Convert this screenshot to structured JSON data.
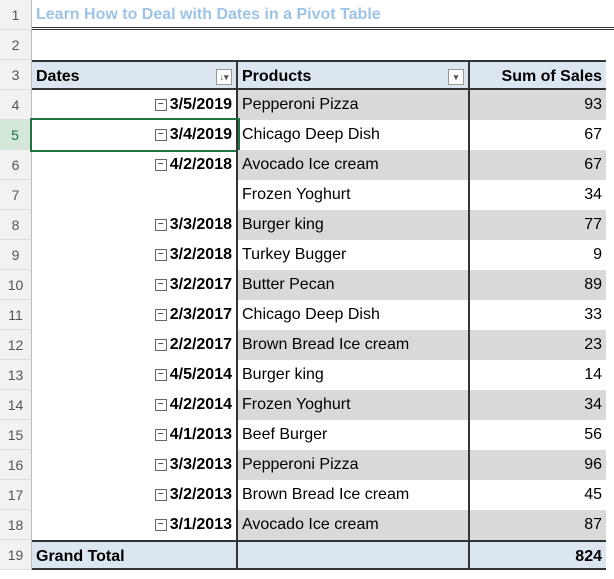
{
  "sheet": {
    "title": "Learn How to Deal with Dates in a Pivot Table",
    "row_headers": [
      1,
      2,
      3,
      4,
      5,
      6,
      7,
      8,
      9,
      10,
      11,
      12,
      13,
      14,
      15,
      16,
      17,
      18,
      19
    ],
    "columns": [
      "Dates",
      "Products",
      "Sum of Sales"
    ],
    "rows": [
      {
        "date": "3/5/2019",
        "product": "Pepperoni Pizza",
        "sales": 93
      },
      {
        "date": "3/4/2019",
        "product": "Chicago Deep Dish",
        "sales": 67
      },
      {
        "date": "4/2/2018",
        "product": "Avocado Ice cream",
        "sales": 67
      },
      {
        "date": null,
        "product": "Frozen Yoghurt",
        "sales": 34
      },
      {
        "date": "3/3/2018",
        "product": "Burger king",
        "sales": 77
      },
      {
        "date": "3/2/2018",
        "product": "Turkey Bugger",
        "sales": 9
      },
      {
        "date": "3/2/2017",
        "product": "Butter Pecan",
        "sales": 89
      },
      {
        "date": "2/3/2017",
        "product": "Chicago Deep Dish",
        "sales": 33
      },
      {
        "date": "2/2/2017",
        "product": "Brown Bread Ice cream",
        "sales": 23
      },
      {
        "date": "4/5/2014",
        "product": "Burger king",
        "sales": 14
      },
      {
        "date": "4/2/2014",
        "product": "Frozen Yoghurt",
        "sales": 34
      },
      {
        "date": "4/1/2013",
        "product": "Beef Burger",
        "sales": 56
      },
      {
        "date": "3/3/2013",
        "product": "Pepperoni Pizza",
        "sales": 96
      },
      {
        "date": "3/2/2013",
        "product": "Brown Bread Ice cream",
        "sales": 45
      },
      {
        "date": "3/1/2013",
        "product": "Avocado Ice cream",
        "sales": 87
      }
    ],
    "grand_total": {
      "label": "Grand Total",
      "sales": 824
    }
  }
}
